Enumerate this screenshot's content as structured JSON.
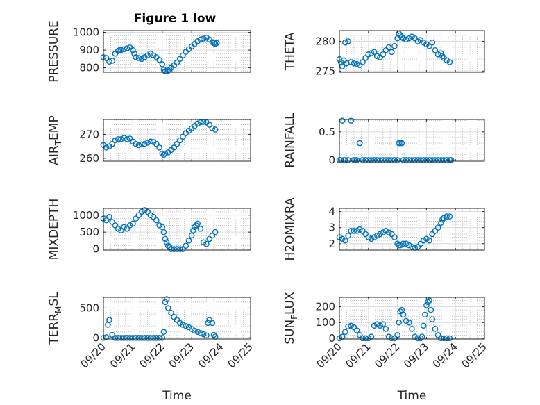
{
  "title": "Figure 1 low",
  "chart_data": [
    {
      "type": "scatter",
      "ylabel": "PRESSURE",
      "xlim": [
        "09/20",
        "09/25"
      ],
      "ylim": [
        775,
        1010
      ],
      "yticks": [
        800,
        900,
        1000
      ],
      "grid": true,
      "series": [
        {
          "color": "#0072BD",
          "x": [
            0.0,
            0.1,
            0.2,
            0.3,
            0.4,
            0.5,
            0.55,
            0.6,
            0.7,
            0.8,
            0.9,
            1.0,
            1.05,
            1.1,
            1.2,
            1.3,
            1.4,
            1.5,
            1.6,
            1.7,
            1.8,
            1.9,
            2.0,
            2.05,
            2.1,
            2.15,
            2.2,
            2.25,
            2.3,
            2.4,
            2.5,
            2.6,
            2.7,
            2.8,
            2.9,
            3.0,
            3.1,
            3.2,
            3.3,
            3.4,
            3.5,
            3.6,
            3.7,
            3.75,
            3.8,
            3.85
          ],
          "y": [
            860,
            855,
            835,
            840,
            880,
            895,
            900,
            900,
            905,
            910,
            915,
            900,
            880,
            860,
            855,
            850,
            860,
            870,
            880,
            870,
            860,
            845,
            820,
            790,
            780,
            780,
            785,
            790,
            800,
            815,
            830,
            850,
            870,
            890,
            905,
            920,
            935,
            950,
            960,
            965,
            970,
            960,
            945,
            940,
            935,
            940
          ]
        }
      ]
    },
    {
      "type": "scatter",
      "ylabel": "THETA",
      "xlim": [
        "09/20",
        "09/25"
      ],
      "ylim": [
        274.8,
        281.8
      ],
      "yticks": [
        275,
        280
      ],
      "grid": true,
      "series": [
        {
          "color": "#0072BD",
          "x": [
            0.0,
            0.05,
            0.1,
            0.15,
            0.2,
            0.25,
            0.3,
            0.4,
            0.5,
            0.6,
            0.7,
            0.8,
            0.9,
            1.0,
            1.1,
            1.2,
            1.3,
            1.4,
            1.5,
            1.6,
            1.7,
            1.8,
            1.9,
            2.0,
            2.05,
            2.1,
            2.15,
            2.2,
            2.3,
            2.4,
            2.5,
            2.6,
            2.7,
            2.8,
            2.9,
            3.0,
            3.1,
            3.2,
            3.3,
            3.4,
            3.5,
            3.55,
            3.6,
            3.7,
            3.8
          ],
          "y": [
            277.0,
            276.5,
            275.8,
            276.8,
            279.8,
            276.3,
            280.0,
            276.5,
            276.3,
            276.2,
            276.0,
            276.5,
            277.2,
            277.8,
            278.0,
            278.2,
            277.5,
            277.3,
            277.8,
            278.5,
            279.0,
            278.2,
            279.2,
            280.5,
            281.3,
            281.0,
            280.7,
            280.5,
            280.3,
            280.5,
            280.8,
            280.5,
            280.0,
            280.2,
            279.8,
            279.5,
            279.2,
            279.8,
            278.5,
            277.8,
            278.0,
            277.5,
            277.2,
            276.8,
            276.5
          ]
        }
      ]
    },
    {
      "type": "scatter",
      "ylabel": "AIR_TEMP",
      "xlim": [
        "09/20",
        "09/25"
      ],
      "ylim": [
        258.8,
        276.2
      ],
      "yticks": [
        260,
        270
      ],
      "grid": true,
      "series": [
        {
          "color": "#0072BD",
          "x": [
            0.0,
            0.1,
            0.2,
            0.3,
            0.4,
            0.5,
            0.6,
            0.7,
            0.8,
            0.9,
            1.0,
            1.1,
            1.2,
            1.3,
            1.4,
            1.5,
            1.6,
            1.7,
            1.8,
            1.9,
            2.0,
            2.05,
            2.1,
            2.2,
            2.3,
            2.4,
            2.5,
            2.6,
            2.7,
            2.8,
            2.9,
            3.0,
            3.1,
            3.2,
            3.3,
            3.4,
            3.5,
            3.6,
            3.7,
            3.8
          ],
          "y": [
            265.5,
            264.5,
            265.0,
            266.0,
            267.5,
            268.0,
            268.0,
            268.5,
            268.0,
            268.2,
            267.0,
            266.0,
            265.5,
            265.8,
            266.0,
            266.5,
            267.0,
            266.8,
            266.0,
            264.5,
            262.0,
            261.5,
            262.0,
            262.5,
            263.5,
            264.5,
            266.0,
            267.5,
            269.0,
            270.5,
            271.5,
            272.5,
            273.5,
            274.5,
            275.0,
            275.2,
            275.0,
            274.0,
            272.5,
            272.0
          ]
        }
      ]
    },
    {
      "type": "scatter",
      "ylabel": "RAINFALL",
      "xlim": [
        "09/20",
        "09/25"
      ],
      "ylim": [
        -0.02,
        0.72
      ],
      "yticks": [
        0,
        0.5
      ],
      "grid": true,
      "series": [
        {
          "color": "#0072BD",
          "x": [
            0.0,
            0.05,
            0.1,
            0.15,
            0.2,
            0.3,
            0.4,
            0.5,
            0.55,
            0.6,
            0.7,
            0.8,
            0.9,
            1.0,
            1.1,
            1.2,
            1.3,
            1.4,
            1.5,
            1.6,
            1.7,
            1.8,
            1.9,
            2.0,
            2.05,
            2.1,
            2.15,
            2.2,
            2.3,
            2.4,
            2.5,
            2.6,
            2.7,
            2.8,
            2.9,
            3.0,
            3.1,
            3.2,
            3.3,
            3.4,
            3.5,
            3.6,
            3.7,
            3.8,
            3.85
          ],
          "y": [
            0,
            0,
            0.7,
            0,
            0,
            0,
            0.7,
            0,
            0,
            0,
            0.3,
            0,
            0,
            0,
            0,
            0,
            0,
            0,
            0,
            0,
            0,
            0,
            0,
            0,
            0.3,
            0.3,
            0.3,
            0,
            0,
            0,
            0,
            0,
            0,
            0,
            0,
            0,
            0,
            0,
            0,
            0,
            0,
            0,
            0,
            0,
            0
          ]
        }
      ]
    },
    {
      "type": "scatter",
      "ylabel": "MIXDEPTH",
      "xlim": [
        "09/20",
        "09/25"
      ],
      "ylim": [
        -30,
        1200
      ],
      "yticks": [
        0,
        500,
        1000
      ],
      "grid": true,
      "series": [
        {
          "color": "#0072BD",
          "x": [
            0.0,
            0.1,
            0.2,
            0.3,
            0.4,
            0.5,
            0.6,
            0.7,
            0.8,
            0.9,
            1.0,
            1.1,
            1.2,
            1.3,
            1.4,
            1.5,
            1.6,
            1.7,
            1.8,
            1.9,
            2.0,
            2.05,
            2.1,
            2.15,
            2.2,
            2.25,
            2.3,
            2.4,
            2.5,
            2.6,
            2.7,
            2.8,
            2.9,
            3.0,
            3.05,
            3.1,
            3.15,
            3.2,
            3.3,
            3.4,
            3.5,
            3.6,
            3.7,
            3.8
          ],
          "y": [
            900,
            850,
            950,
            800,
            700,
            600,
            550,
            650,
            600,
            700,
            750,
            900,
            1000,
            1100,
            1150,
            1100,
            1000,
            950,
            850,
            700,
            650,
            500,
            300,
            200,
            100,
            50,
            0,
            0,
            0,
            0,
            0,
            100,
            250,
            400,
            550,
            650,
            700,
            750,
            600,
            200,
            150,
            300,
            400,
            500
          ]
        }
      ]
    },
    {
      "type": "scatter",
      "ylabel": "H2OMIXRA",
      "xlim": [
        "09/20",
        "09/25"
      ],
      "ylim": [
        1.6,
        4.2
      ],
      "yticks": [
        2,
        3,
        4
      ],
      "grid": true,
      "series": [
        {
          "color": "#0072BD",
          "x": [
            0.0,
            0.1,
            0.2,
            0.3,
            0.4,
            0.5,
            0.6,
            0.7,
            0.8,
            0.9,
            1.0,
            1.1,
            1.2,
            1.3,
            1.4,
            1.5,
            1.6,
            1.7,
            1.8,
            1.9,
            2.0,
            2.05,
            2.1,
            2.2,
            2.3,
            2.4,
            2.5,
            2.6,
            2.7,
            2.8,
            2.9,
            3.0,
            3.1,
            3.2,
            3.3,
            3.4,
            3.5,
            3.55,
            3.6,
            3.7,
            3.8
          ],
          "y": [
            2.4,
            2.3,
            2.2,
            2.5,
            2.8,
            2.8,
            2.8,
            2.9,
            2.8,
            2.6,
            2.4,
            2.3,
            2.4,
            2.5,
            2.6,
            2.7,
            2.8,
            2.7,
            2.6,
            2.4,
            2.0,
            1.9,
            1.9,
            2.0,
            2.0,
            1.9,
            1.8,
            1.75,
            1.8,
            2.0,
            2.2,
            2.3,
            2.2,
            2.6,
            2.8,
            3.0,
            3.3,
            3.5,
            3.6,
            3.7,
            3.7
          ]
        }
      ]
    },
    {
      "type": "scatter",
      "ylabel": "TERR_MSL",
      "xlim": [
        "09/20",
        "09/25"
      ],
      "ylim": [
        -20,
        680
      ],
      "yticks": [
        0,
        500
      ],
      "xticks": [
        "09/20",
        "09/21",
        "09/22",
        "09/23",
        "09/24",
        "09/25"
      ],
      "xlabel": "Time",
      "grid": true,
      "series": [
        {
          "color": "#0072BD",
          "x": [
            0.0,
            0.1,
            0.15,
            0.2,
            0.3,
            0.4,
            0.5,
            0.6,
            0.7,
            0.8,
            0.9,
            1.0,
            1.1,
            1.2,
            1.3,
            1.4,
            1.5,
            1.6,
            1.7,
            1.8,
            1.9,
            2.0,
            2.05,
            2.1,
            2.15,
            2.2,
            2.3,
            2.4,
            2.5,
            2.6,
            2.7,
            2.8,
            2.9,
            3.0,
            3.1,
            3.2,
            3.3,
            3.4,
            3.5,
            3.55,
            3.6,
            3.7,
            3.75,
            3.8
          ],
          "y": [
            0,
            10,
            220,
            300,
            50,
            0,
            0,
            0,
            0,
            0,
            0,
            0,
            0,
            0,
            0,
            0,
            0,
            0,
            0,
            0,
            0,
            0,
            100,
            600,
            650,
            500,
            420,
            350,
            300,
            250,
            220,
            200,
            180,
            150,
            120,
            100,
            80,
            60,
            40,
            250,
            300,
            250,
            50,
            20
          ]
        }
      ]
    },
    {
      "type": "scatter",
      "ylabel": "SUN_FLUX",
      "xlim": [
        "09/20",
        "09/25"
      ],
      "ylim": [
        -5,
        260
      ],
      "yticks": [
        0,
        100,
        200
      ],
      "xticks": [
        "09/20",
        "09/21",
        "09/22",
        "09/23",
        "09/24",
        "09/25"
      ],
      "xlabel": "Time",
      "grid": true,
      "series": [
        {
          "color": "#0072BD",
          "x": [
            0.0,
            0.1,
            0.2,
            0.3,
            0.4,
            0.5,
            0.6,
            0.7,
            0.8,
            0.9,
            1.0,
            1.1,
            1.2,
            1.3,
            1.4,
            1.5,
            1.6,
            1.7,
            1.8,
            1.9,
            2.0,
            2.05,
            2.1,
            2.15,
            2.2,
            2.3,
            2.4,
            2.5,
            2.6,
            2.7,
            2.8,
            2.85,
            2.9,
            2.95,
            3.0,
            3.05,
            3.1,
            3.15,
            3.2,
            3.3,
            3.4,
            3.5,
            3.6,
            3.7,
            3.8
          ],
          "y": [
            0,
            10,
            40,
            75,
            80,
            70,
            50,
            20,
            0,
            0,
            0,
            10,
            80,
            90,
            80,
            90,
            60,
            10,
            0,
            0,
            20,
            100,
            170,
            180,
            150,
            110,
            100,
            60,
            10,
            0,
            0,
            10,
            80,
            150,
            210,
            230,
            240,
            180,
            120,
            60,
            20,
            0,
            0,
            0,
            0
          ]
        }
      ]
    }
  ]
}
